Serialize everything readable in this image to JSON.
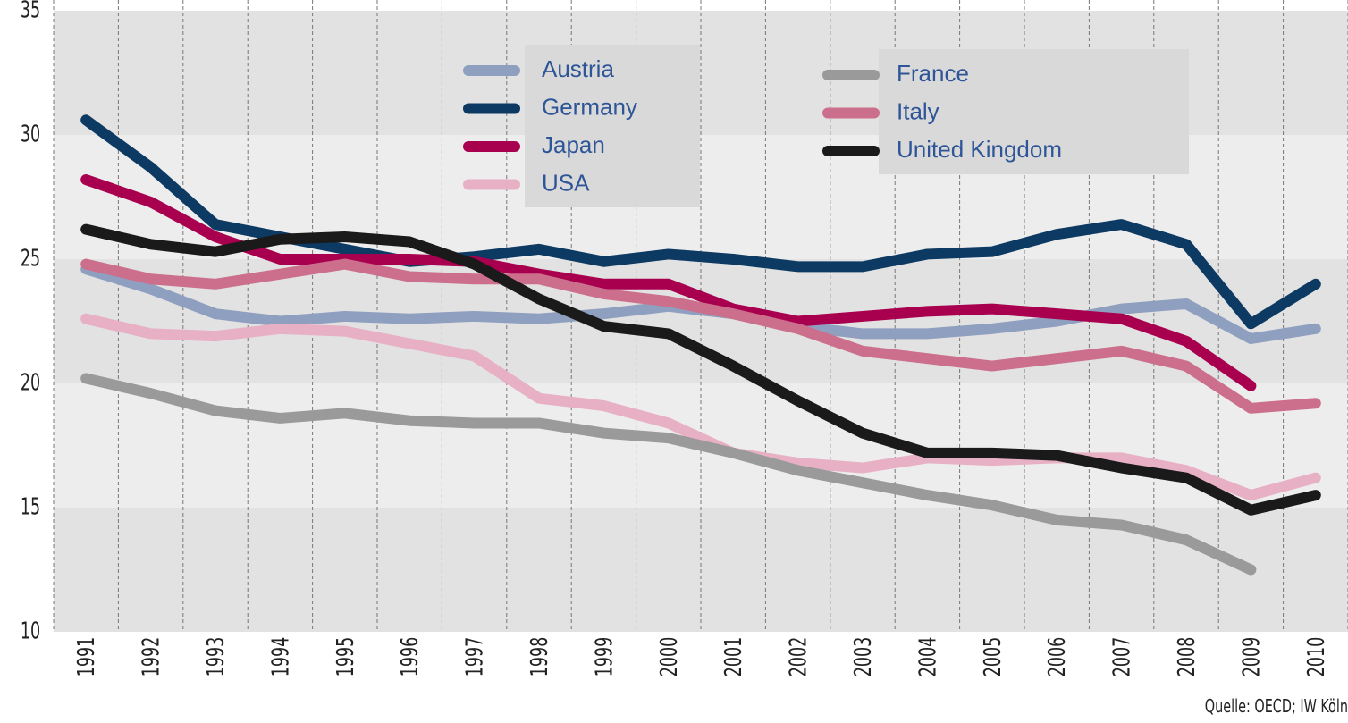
{
  "chart_data": {
    "type": "line",
    "categories": [
      "1991",
      "1992",
      "1993",
      "1994",
      "1995",
      "1996",
      "1997",
      "1998",
      "1999",
      "2000",
      "2001",
      "2002",
      "2003",
      "2004",
      "2005",
      "2006",
      "2007",
      "2008",
      "2009",
      "2010"
    ],
    "ylim": [
      10,
      35
    ],
    "yticks": [
      10,
      15,
      20,
      25,
      30,
      35
    ],
    "grid": true,
    "series": [
      {
        "name": "Austria",
        "color": "#8f9fbf",
        "values": [
          24.6,
          23.8,
          22.8,
          22.5,
          22.7,
          22.6,
          22.7,
          22.6,
          22.8,
          23.1,
          22.8,
          22.3,
          22.0,
          22.0,
          22.2,
          22.5,
          23.0,
          23.2,
          21.8,
          22.2
        ]
      },
      {
        "name": "Germany",
        "color": "#0d3a62",
        "values": [
          30.6,
          28.7,
          26.4,
          25.9,
          25.4,
          24.9,
          25.1,
          25.4,
          24.9,
          25.2,
          25.0,
          24.7,
          24.7,
          25.2,
          25.3,
          26.0,
          26.4,
          25.6,
          22.4,
          24.0
        ]
      },
      {
        "name": "Japan",
        "color": "#a8004f",
        "values": [
          28.2,
          27.3,
          25.9,
          25.0,
          25.0,
          25.0,
          24.9,
          24.4,
          24.0,
          24.0,
          23.0,
          22.5,
          22.7,
          22.9,
          23.0,
          22.8,
          22.6,
          21.7,
          19.9,
          null
        ]
      },
      {
        "name": "USA",
        "color": "#e8b0c4",
        "values": [
          22.6,
          22.0,
          21.9,
          22.2,
          22.1,
          21.6,
          21.1,
          19.4,
          19.1,
          18.4,
          17.2,
          16.8,
          16.6,
          17.0,
          16.9,
          17.0,
          17.0,
          16.5,
          15.5,
          16.2
        ]
      },
      {
        "name": "France",
        "color": "#9a9a9a",
        "values": [
          20.2,
          19.6,
          18.9,
          18.6,
          18.8,
          18.5,
          18.4,
          18.4,
          18.0,
          17.8,
          17.2,
          16.5,
          16.0,
          15.5,
          15.1,
          14.5,
          14.3,
          13.7,
          12.5,
          null
        ]
      },
      {
        "name": "Italy",
        "color": "#cc6f8c",
        "values": [
          24.8,
          24.2,
          24.0,
          24.4,
          24.8,
          24.3,
          24.2,
          24.2,
          23.6,
          23.3,
          22.8,
          22.2,
          21.3,
          21.0,
          20.7,
          21.0,
          21.3,
          20.7,
          19.0,
          19.2
        ]
      },
      {
        "name": "United Kingdom",
        "color": "#1a1a1a",
        "values": [
          26.2,
          25.6,
          25.3,
          25.8,
          25.9,
          25.7,
          24.8,
          23.4,
          22.3,
          22.0,
          20.7,
          19.3,
          18.0,
          17.2,
          17.2,
          17.1,
          16.6,
          16.2,
          14.9,
          15.5
        ]
      }
    ],
    "source": "Quelle: OECD; IW Köln"
  }
}
